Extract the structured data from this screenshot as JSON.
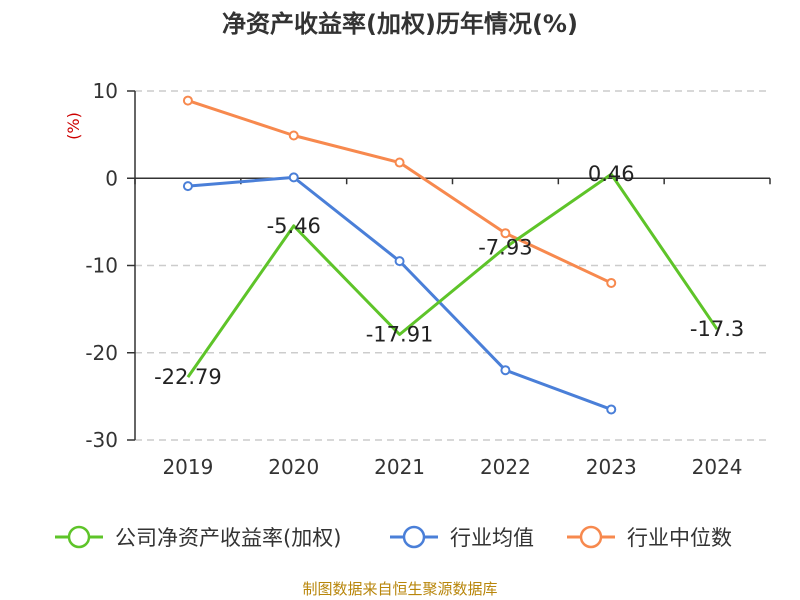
{
  "chart_data": {
    "type": "line",
    "title": "净资产收益率(加权)历年情况(%)",
    "ylabel": "(%)",
    "categories": [
      "2019",
      "2020",
      "2021",
      "2022",
      "2023",
      "2024"
    ],
    "ylim": [
      -30,
      10
    ],
    "yticks": [
      10,
      0,
      -10,
      -20,
      -30
    ],
    "grid": true,
    "series": [
      {
        "name": "公司净资产收益率(加权)",
        "color": "#5ec429",
        "values": [
          -22.79,
          -5.46,
          -17.91,
          -7.93,
          0.46,
          -17.3
        ],
        "labels": [
          "-22.79",
          "-5.46",
          "-17.91",
          "-7.93",
          "0.46",
          "-17.3"
        ]
      },
      {
        "name": "行业均值",
        "color": "#4a7fd8",
        "values": [
          -0.9,
          0.1,
          -9.5,
          -22.0,
          -26.5,
          null
        ]
      },
      {
        "name": "行业中位数",
        "color": "#f7894e",
        "values": [
          8.9,
          4.9,
          1.8,
          -6.3,
          -12.0,
          null
        ]
      }
    ],
    "legend_position": "bottom",
    "source": "制图数据来自恒生聚源数据库"
  }
}
